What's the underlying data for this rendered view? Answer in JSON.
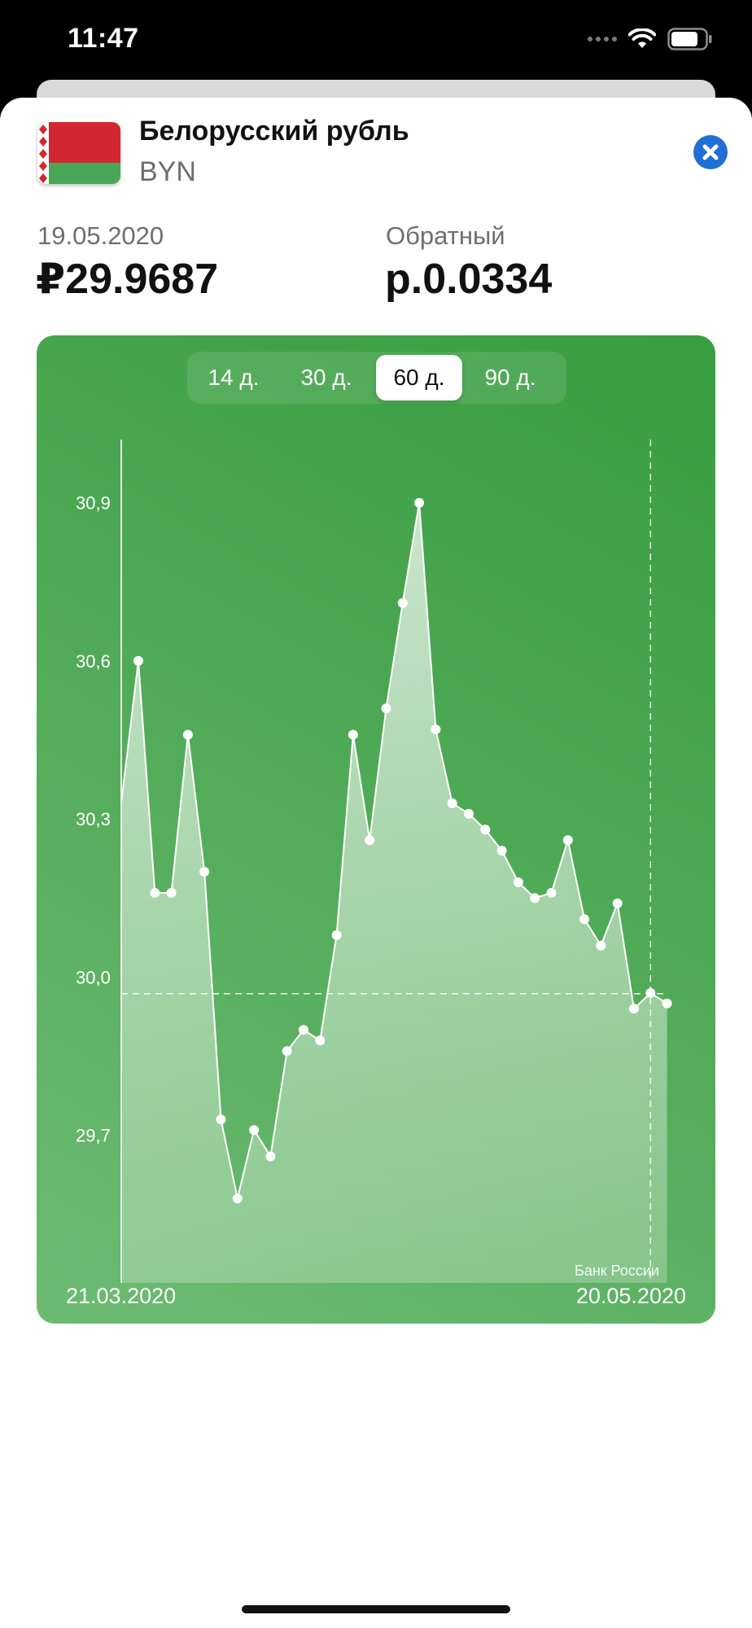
{
  "status_bar": {
    "time": "11:47"
  },
  "header": {
    "currency_name": "Белорусский рубль",
    "currency_code": "BYN",
    "flag_colors": {
      "red": "#d22730",
      "green": "#4aa657",
      "ornament": "#ffffff"
    },
    "close_icon_color": "#1f6fd6"
  },
  "rate": {
    "date": "19.05.2020",
    "value": "₽29.9687",
    "inverse_label": "Обратный",
    "inverse_value": "р.0.0334"
  },
  "periods": {
    "options": [
      "14 д.",
      "30 д.",
      "60 д.",
      "90 д."
    ],
    "selected": "60 д."
  },
  "chart": {
    "source": "Банк России",
    "start_date": "21.03.2020",
    "end_date": "20.05.2020"
  },
  "chart_data": {
    "type": "area",
    "ylim": [
      29.42,
      31.02
    ],
    "yticks": [
      29.7,
      30.0,
      30.3,
      30.6,
      30.9
    ],
    "ytick_labels": [
      "29,7",
      "30,0",
      "30,3",
      "30,6",
      "30,9"
    ],
    "x_start": "21.03.2020",
    "x_end": "20.05.2020",
    "values": [
      30.33,
      30.6,
      30.16,
      30.16,
      30.46,
      30.2,
      29.73,
      29.58,
      29.71,
      29.66,
      29.86,
      29.9,
      29.88,
      30.08,
      30.46,
      30.26,
      30.51,
      30.71,
      30.9,
      30.47,
      30.33,
      30.31,
      30.28,
      30.24,
      30.18,
      30.15,
      30.16,
      30.26,
      30.11,
      30.06,
      30.14,
      29.94,
      29.97,
      29.95
    ],
    "first_value_marker": false,
    "reference_value": 29.9687,
    "selected_index": 32,
    "colors": {
      "line": "#ffffff",
      "fill": "rgba(255,255,255,0.55)",
      "background": "#4ea955"
    },
    "grid": false
  }
}
